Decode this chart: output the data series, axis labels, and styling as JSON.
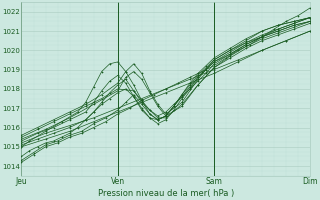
{
  "xlabel": "Pression niveau de la mer( hPa )",
  "bg_color": "#cce8e0",
  "grid_major_color": "#aaccc0",
  "grid_minor_color": "#bbddd5",
  "line_color": "#1a5c22",
  "ylim": [
    1013.5,
    1022.5
  ],
  "xlim": [
    0,
    72
  ],
  "yticks": [
    1014,
    1015,
    1016,
    1017,
    1018,
    1019,
    1020,
    1021,
    1022
  ],
  "xtick_positions": [
    0,
    24,
    48,
    72
  ],
  "xtick_labels": [
    "Jeu",
    "Ven",
    "Sam",
    "Dim"
  ],
  "series": [
    [
      0,
      1014.2,
      3,
      1014.6,
      6,
      1015.0,
      9,
      1015.2,
      12,
      1015.5,
      15,
      1015.7,
      18,
      1016.0,
      21,
      1016.3,
      24,
      1016.7,
      27,
      1017.0,
      30,
      1017.4,
      33,
      1017.7,
      36,
      1018.0,
      39,
      1018.3,
      42,
      1018.6,
      45,
      1018.9,
      48,
      1019.2,
      51,
      1019.6,
      54,
      1020.0,
      57,
      1020.3,
      60,
      1020.7,
      63,
      1021.1,
      66,
      1021.5,
      69,
      1021.8,
      72,
      1022.2
    ],
    [
      0,
      1015.0,
      6,
      1015.4,
      12,
      1015.8,
      18,
      1016.3,
      24,
      1016.8,
      30,
      1017.3,
      36,
      1017.8,
      42,
      1018.3,
      48,
      1018.8,
      54,
      1019.4,
      60,
      1020.0,
      66,
      1020.5,
      72,
      1021.0
    ],
    [
      0,
      1015.2,
      6,
      1015.7,
      12,
      1016.1,
      18,
      1016.5,
      24,
      1017.0,
      30,
      1017.5,
      36,
      1018.0,
      42,
      1018.5,
      48,
      1019.0,
      54,
      1019.5,
      60,
      1020.0,
      66,
      1020.5,
      72,
      1021.0
    ],
    [
      0,
      1015.1,
      4,
      1015.4,
      8,
      1015.7,
      12,
      1016.0,
      16,
      1016.4,
      18,
      1016.8,
      20,
      1017.3,
      22,
      1017.8,
      24,
      1018.2,
      26,
      1018.5,
      28,
      1017.9,
      30,
      1017.3,
      32,
      1016.9,
      34,
      1016.6,
      36,
      1016.8,
      38,
      1017.2,
      40,
      1017.6,
      42,
      1018.0,
      44,
      1018.4,
      46,
      1018.8,
      48,
      1019.3,
      52,
      1019.8,
      56,
      1020.3,
      60,
      1020.7,
      64,
      1021.1,
      68,
      1021.4,
      72,
      1021.7
    ],
    [
      0,
      1015.3,
      4,
      1015.7,
      8,
      1016.0,
      12,
      1016.4,
      16,
      1016.8,
      18,
      1017.3,
      20,
      1017.9,
      22,
      1018.4,
      24,
      1018.7,
      26,
      1018.3,
      28,
      1017.6,
      30,
      1016.9,
      32,
      1016.5,
      34,
      1016.4,
      36,
      1016.6,
      38,
      1017.1,
      40,
      1017.6,
      42,
      1018.1,
      44,
      1018.6,
      46,
      1019.0,
      48,
      1019.4,
      52,
      1019.9,
      56,
      1020.4,
      60,
      1020.8,
      64,
      1021.1,
      68,
      1021.4,
      72,
      1021.7
    ],
    [
      0,
      1015.0,
      2,
      1015.3,
      6,
      1015.8,
      10,
      1016.3,
      14,
      1016.8,
      16,
      1017.3,
      18,
      1018.1,
      20,
      1018.9,
      22,
      1019.3,
      24,
      1019.4,
      26,
      1018.9,
      28,
      1018.2,
      30,
      1017.4,
      32,
      1016.7,
      34,
      1016.4,
      36,
      1016.6,
      38,
      1017.1,
      40,
      1017.7,
      42,
      1018.2,
      44,
      1018.7,
      46,
      1019.1,
      48,
      1019.5,
      52,
      1020.0,
      56,
      1020.5,
      60,
      1021.0,
      64,
      1021.3,
      68,
      1021.5,
      72,
      1021.7
    ],
    [
      0,
      1014.5,
      2,
      1014.8,
      4,
      1015.0,
      6,
      1015.2,
      8,
      1015.3,
      10,
      1015.5,
      12,
      1015.7,
      14,
      1016.0,
      16,
      1016.4,
      18,
      1016.8,
      20,
      1017.2,
      22,
      1017.5,
      24,
      1017.8,
      26,
      1018.0,
      28,
      1017.6,
      30,
      1017.0,
      32,
      1016.5,
      34,
      1016.2,
      36,
      1016.4,
      38,
      1016.9,
      40,
      1017.5,
      42,
      1018.0,
      44,
      1018.6,
      46,
      1019.0,
      48,
      1019.4,
      52,
      1019.8,
      56,
      1020.3,
      60,
      1020.7,
      64,
      1021.0,
      68,
      1021.3,
      72,
      1021.5
    ],
    [
      0,
      1015.5,
      4,
      1015.9,
      8,
      1016.3,
      12,
      1016.7,
      16,
      1017.1,
      20,
      1017.5,
      24,
      1018.0,
      28,
      1017.9,
      30,
      1017.4,
      32,
      1016.9,
      34,
      1016.5,
      36,
      1016.5,
      40,
      1017.2,
      44,
      1018.2,
      48,
      1019.1,
      52,
      1019.7,
      56,
      1020.2,
      60,
      1020.6,
      64,
      1020.9,
      68,
      1021.2,
      72,
      1021.5
    ],
    [
      0,
      1015.4,
      6,
      1015.9,
      12,
      1016.5,
      18,
      1017.2,
      24,
      1017.9,
      26,
      1018.6,
      28,
      1018.9,
      30,
      1018.5,
      32,
      1017.8,
      34,
      1017.1,
      36,
      1016.6,
      40,
      1017.1,
      44,
      1018.2,
      48,
      1019.1,
      52,
      1019.6,
      56,
      1020.1,
      60,
      1020.5,
      64,
      1020.8,
      68,
      1021.1,
      72,
      1021.4
    ],
    [
      0,
      1015.6,
      4,
      1016.0,
      8,
      1016.4,
      12,
      1016.8,
      16,
      1017.2,
      20,
      1017.7,
      24,
      1018.3,
      26,
      1018.9,
      28,
      1019.3,
      30,
      1018.8,
      32,
      1017.9,
      34,
      1017.2,
      36,
      1016.7,
      40,
      1017.3,
      44,
      1018.5,
      48,
      1019.5,
      52,
      1020.0,
      56,
      1020.4,
      60,
      1020.7,
      64,
      1021.0,
      68,
      1021.3,
      72,
      1021.5
    ],
    [
      0,
      1014.3,
      3,
      1014.7,
      6,
      1015.1,
      9,
      1015.3,
      12,
      1015.6,
      15,
      1015.8,
      18,
      1016.2,
      21,
      1016.5,
      24,
      1016.9,
      26,
      1017.3,
      28,
      1017.7,
      30,
      1017.2,
      32,
      1016.7,
      34,
      1016.4,
      36,
      1016.6,
      38,
      1017.1,
      40,
      1017.7,
      42,
      1018.3,
      44,
      1018.8,
      46,
      1019.2,
      48,
      1019.6,
      52,
      1020.1,
      56,
      1020.6,
      60,
      1021.0,
      64,
      1021.3,
      68,
      1021.5,
      72,
      1021.7
    ]
  ]
}
